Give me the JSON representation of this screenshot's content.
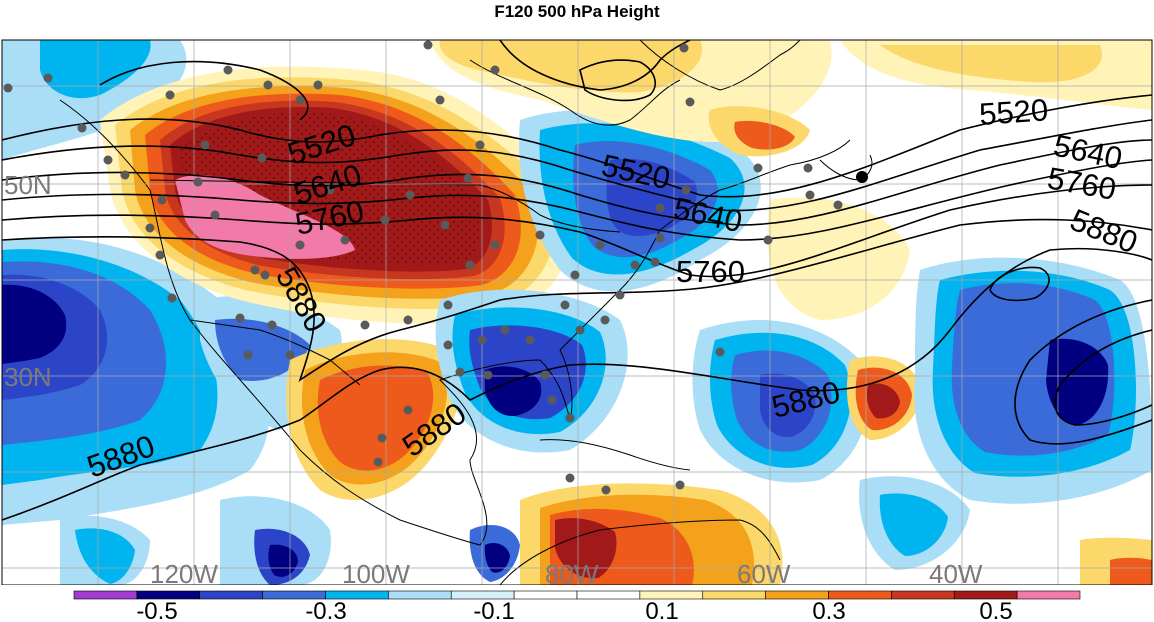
{
  "title": "F120 500 hPa Height",
  "colors": {
    "ocean_base": "#ffffff",
    "coast": "#000000",
    "contour": "#000000",
    "station_dot": "#5a5a5a",
    "grid": "#a8a8a8",
    "axis_label": "#7a7a7a"
  },
  "lat_labels": [
    "50N",
    "30N"
  ],
  "lon_labels": [
    "120W",
    "100W",
    "80W",
    "60W",
    "40W"
  ],
  "contour_labels": [
    {
      "text": "5520",
      "id": "label-5520-west"
    },
    {
      "text": "5640",
      "id": "label-5640-west"
    },
    {
      "text": "5760",
      "id": "label-5760-west"
    },
    {
      "text": "5880",
      "id": "label-5880-west"
    },
    {
      "text": "5520",
      "id": "label-5520-central"
    },
    {
      "text": "5640",
      "id": "label-5640-central"
    },
    {
      "text": "5760",
      "id": "label-5760-central"
    },
    {
      "text": "5880",
      "id": "label-5880-gulf"
    },
    {
      "text": "5520",
      "id": "label-5520-east"
    },
    {
      "text": "5640",
      "id": "label-5640-east"
    },
    {
      "text": "5760",
      "id": "label-5760-east"
    },
    {
      "text": "5880",
      "id": "label-5880-east"
    },
    {
      "text": "5880",
      "id": "label-5880-atlantic"
    },
    {
      "text": "5880",
      "id": "label-5880-pacific"
    }
  ],
  "colorbar": {
    "colors": [
      "#a23bd1",
      "#000080",
      "#2c45c8",
      "#3a6bd9",
      "#00b4f0",
      "#a9def6",
      "#d5f0fb",
      "#ffffff",
      "#ffffff",
      "#fff3b8",
      "#fcd86b",
      "#f4a11b",
      "#ee5a1b",
      "#c7361e",
      "#a11919",
      "#f27aa8"
    ],
    "tick_labels": [
      "-0.5",
      "-0.3",
      "-0.1",
      "0.1",
      "0.3",
      "0.5"
    ]
  }
}
